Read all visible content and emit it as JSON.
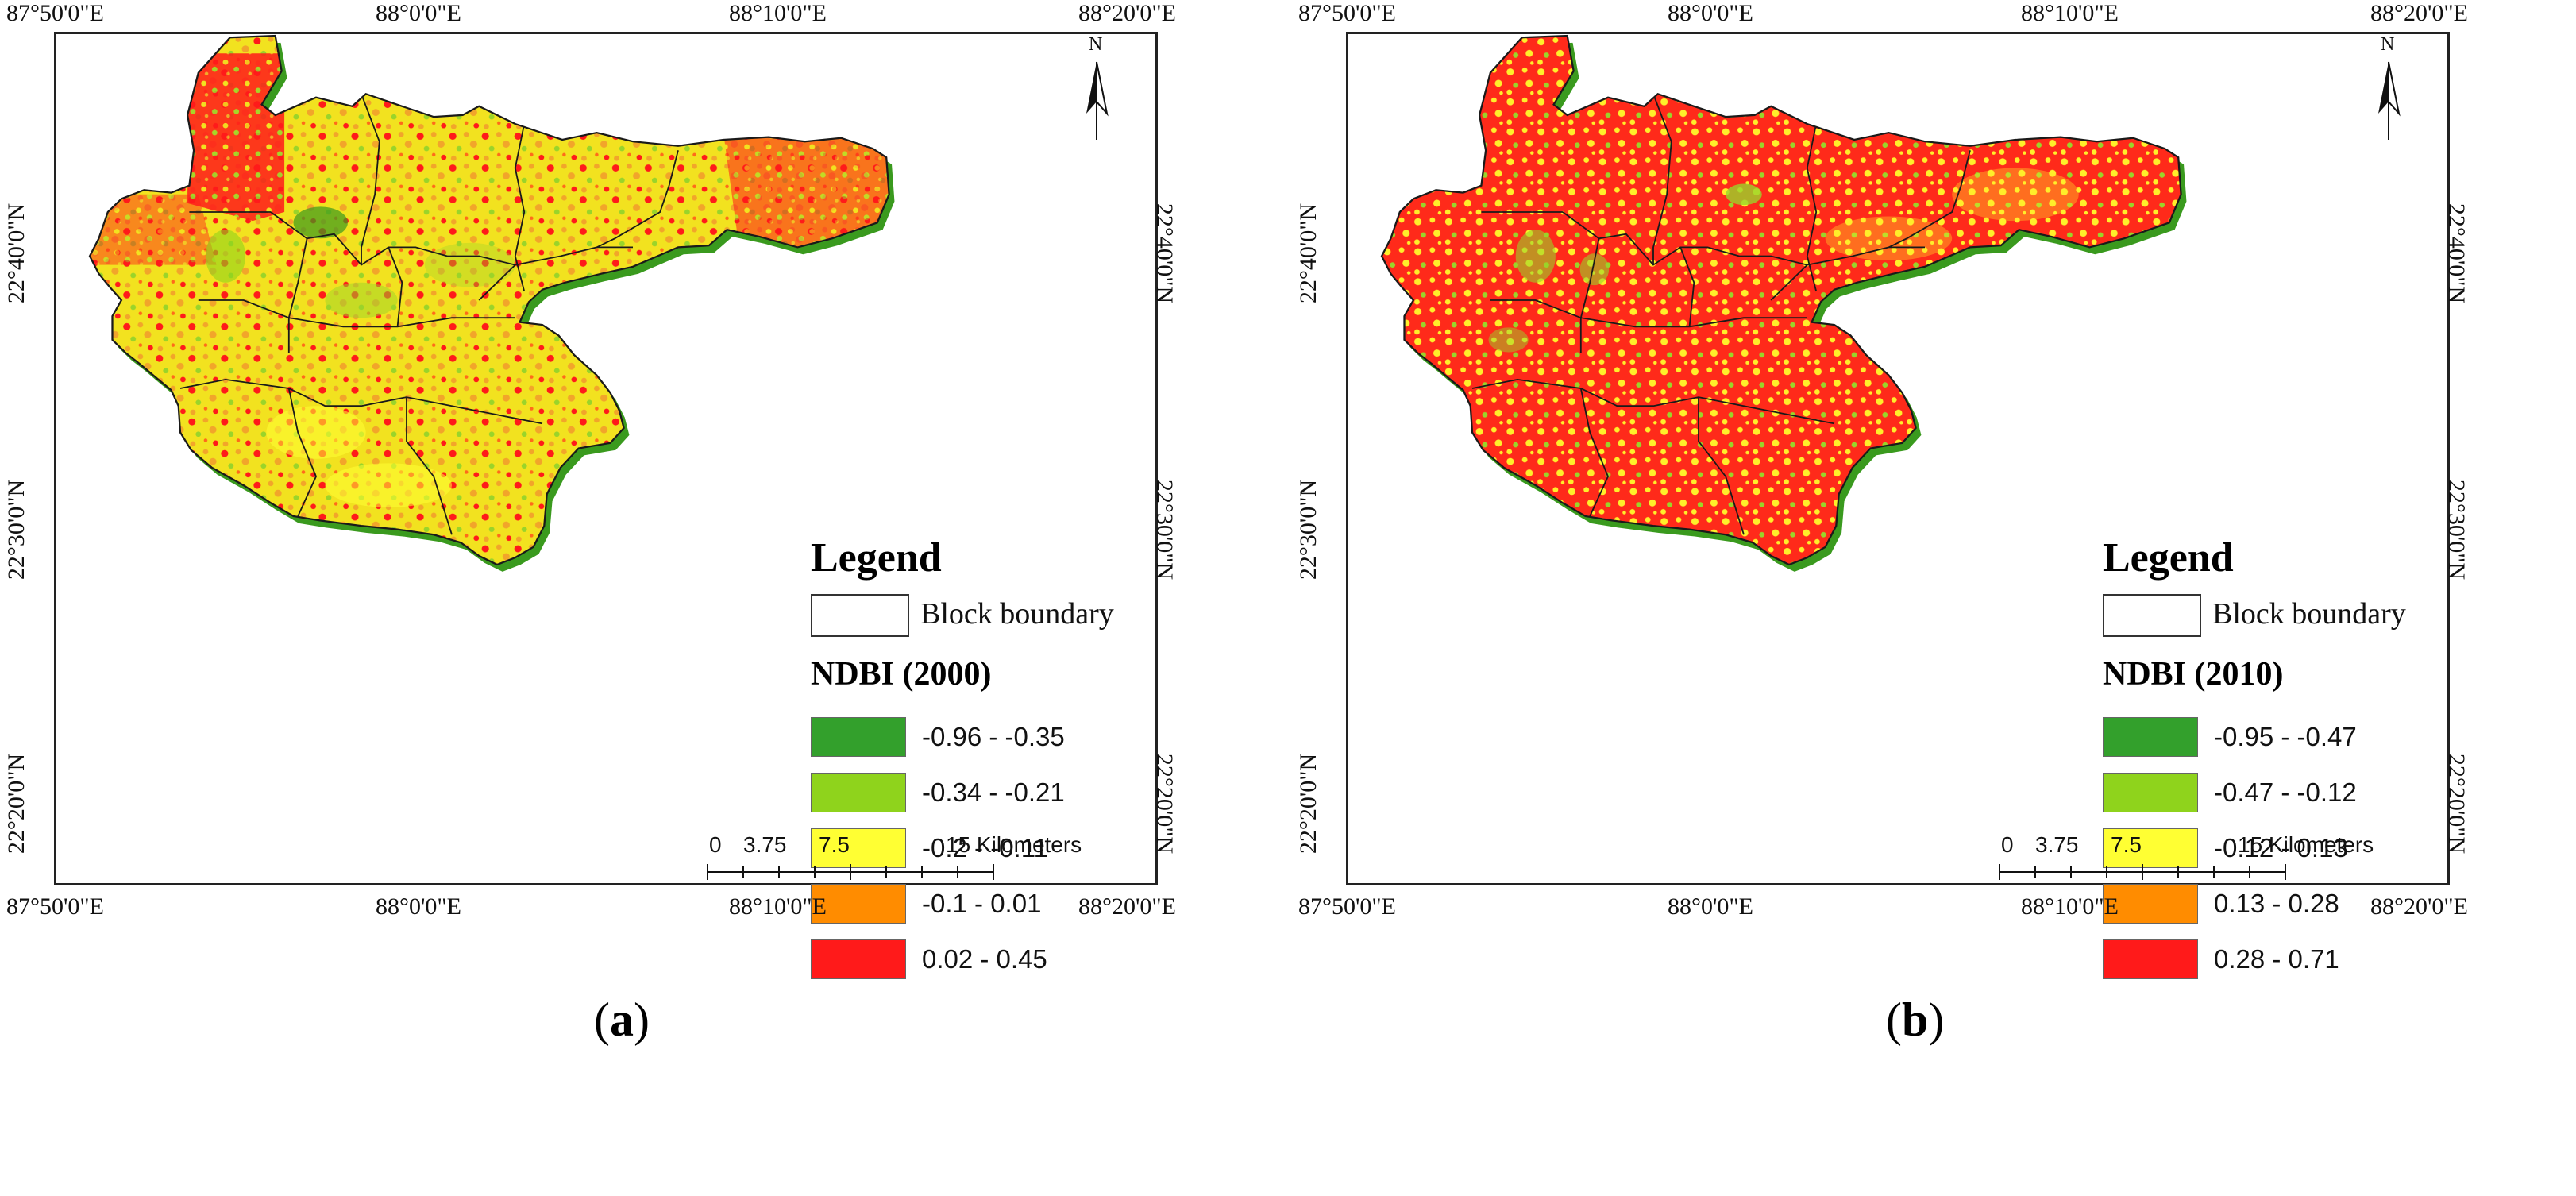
{
  "panels": [
    {
      "id": "a",
      "caption_letter": "a",
      "top_axis_labels": [
        "87°50'0\"E",
        "88°0'0\"E",
        "88°10'0\"E",
        "88°20'0\"E"
      ],
      "bottom_axis_labels": [
        "87°50'0\"E",
        "88°0'0\"E",
        "88°10'0\"E",
        "88°20'0\"E"
      ],
      "left_axis_labels": [
        "22°40'0\"N",
        "22°30'0\"N",
        "22°20'0\"N"
      ],
      "right_axis_labels": [
        "22°40'0\"N",
        "22°30'0\"N",
        "22°20'0\"N"
      ],
      "north_label": "N",
      "legend_title": "Legend",
      "block_boundary_label": "Block boundary",
      "ndbi_title": "NDBI (2000)",
      "classes": [
        {
          "label": "-0.96 - -0.35",
          "color": "#33a02c"
        },
        {
          "label": "-0.34 - -0.21",
          "color": "#8fd31c"
        },
        {
          "label": "-0.2 - -0.11",
          "color": "#ffff33"
        },
        {
          "label": "-0.1 - 0.01",
          "color": "#ff8c00"
        },
        {
          "label": "0.02 - 0.45",
          "color": "#ff1a1a"
        }
      ],
      "scale_numbers": [
        "0",
        "3.75",
        "7.5",
        "15 Kilometers"
      ],
      "base_fill": "#f2e21f",
      "hot_fill": "#ff1a1a",
      "warm_fill": "#f2a52a",
      "cool_fill": "#8fd31c"
    },
    {
      "id": "b",
      "caption_letter": "b",
      "top_axis_labels": [
        "87°50'0\"E",
        "88°0'0\"E",
        "88°10'0\"E",
        "88°20'0\"E"
      ],
      "bottom_axis_labels": [
        "87°50'0\"E",
        "88°0'0\"E",
        "88°10'0\"E",
        "88°20'0\"E"
      ],
      "left_axis_labels": [
        "22°40'0\"N",
        "22°30'0\"N",
        "22°20'0\"N"
      ],
      "right_axis_labels": [
        "22°40'0\"N",
        "22°30'0\"N",
        "22°20'0\"N"
      ],
      "north_label": "N",
      "legend_title": "Legend",
      "block_boundary_label": "Block boundary",
      "ndbi_title": "NDBI (2010)",
      "classes": [
        {
          "label": "-0.95 - -0.47",
          "color": "#33a02c"
        },
        {
          "label": "-0.47 - -0.12",
          "color": "#8fd31c"
        },
        {
          "label": "-0.12 - 0.13",
          "color": "#ffff33"
        },
        {
          "label": "0.13 - 0.28",
          "color": "#ff8c00"
        },
        {
          "label": "0.28 - 0.71",
          "color": "#ff1a1a"
        }
      ],
      "scale_numbers": [
        "0",
        "3.75",
        "7.5",
        "15 Kilometers"
      ],
      "base_fill": "#ff2a1a",
      "hot_fill": "#ff1a1a",
      "warm_fill": "#ffef2a",
      "cool_fill": "#9ad42a"
    }
  ],
  "colors": {
    "frame": "#222222",
    "coast_green": "#3a9a1e",
    "boundary": "#1a1a1a"
  }
}
